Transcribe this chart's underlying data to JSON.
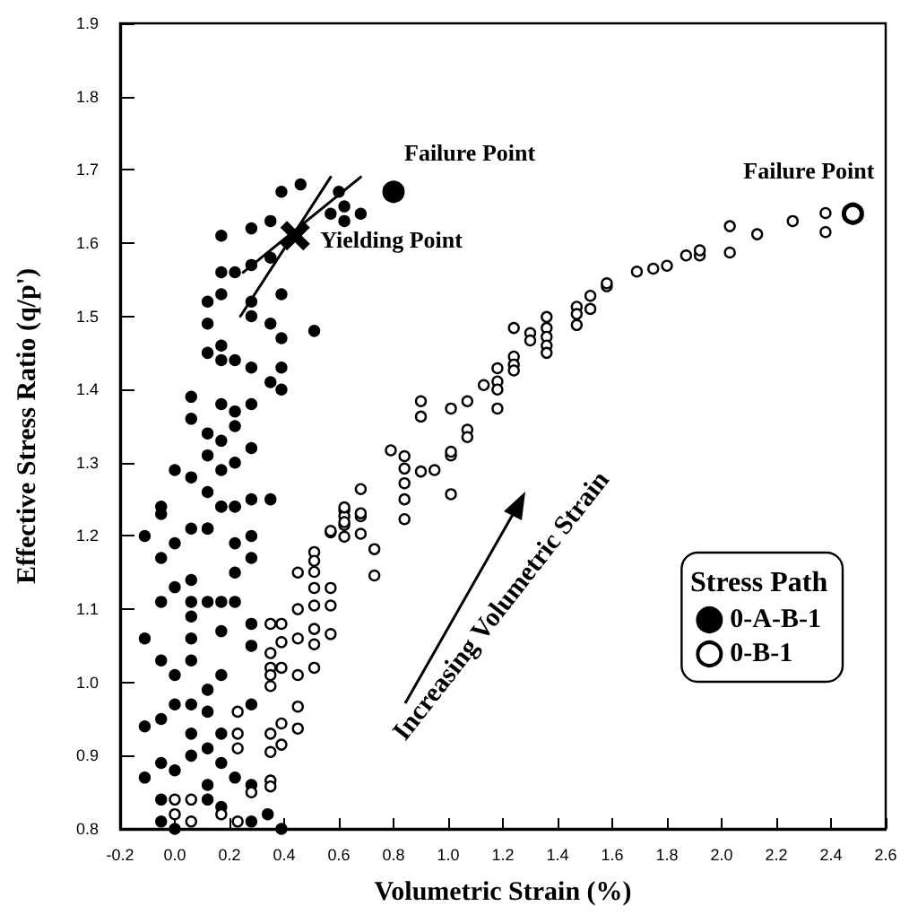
{
  "chart_data": {
    "type": "scatter",
    "xlabel": "Volumetric Strain (%)",
    "ylabel": "Effective Stress Ratio (q/p')",
    "legend_title": "Stress Path",
    "legend": "bottom right",
    "marker": "circle",
    "xlim": [
      -0.2,
      2.6
    ],
    "xticks": [
      -0.2,
      {
        "value": 0,
        "label": "0.0"
      },
      0.2,
      0.4,
      0.6,
      0.8,
      {
        "value": 1,
        "label": "1.0"
      },
      1.2,
      1.4,
      1.6,
      1.8,
      {
        "value": 2,
        "label": "2.0"
      },
      2.2,
      2.4,
      2.6
    ],
    "ylim": [
      0.8,
      1.9
    ],
    "yticks": [
      0.8,
      0.9,
      {
        "value": 1,
        "label": "1.0"
      },
      1.1,
      1.2,
      1.3,
      1.4,
      1.5,
      1.6,
      1.7,
      1.8,
      1.9
    ],
    "annotations": [
      {
        "text": "Failure Point",
        "x": 0.8,
        "y": 1.67
      },
      {
        "text": "Failure Point",
        "x": 2.48,
        "y": 1.64
      },
      {
        "text": "Yielding Point",
        "x": 0.44,
        "y": 1.61
      },
      "Increasing Volumetric Strain"
    ],
    "series": [
      {
        "name": "0-A-B-1",
        "color": "#000000",
        "x": [
          -0.11,
          -0.11,
          -0.11,
          -0.11,
          -0.05,
          -0.05,
          -0.05,
          -0.05,
          -0.05,
          -0.05,
          -0.05,
          -0.05,
          0.0,
          0.0,
          0.0,
          0.0,
          0.0,
          0.0,
          0.06,
          0.06,
          0.06,
          0.06,
          0.06,
          0.06,
          0.06,
          0.06,
          0.06,
          0.12,
          0.12,
          0.12,
          0.12,
          0.12,
          0.12,
          0.12,
          0.17,
          0.17,
          0.17,
          0.17,
          0.17,
          0.17,
          0.17,
          0.22,
          0.22,
          0.22,
          0.22,
          0.22,
          0.28,
          0.28,
          0.28,
          0.28,
          0.28,
          0.28,
          0.28,
          0.34,
          0.39,
          -0.05,
          0.0,
          0.06,
          0.06,
          0.06,
          0.12,
          0.12,
          0.12,
          0.12,
          0.12,
          0.12,
          0.12,
          0.17,
          0.17,
          0.17,
          0.17,
          0.17,
          0.17,
          0.17,
          0.17,
          0.17,
          0.22,
          0.22,
          0.22,
          0.22,
          0.22,
          0.22,
          0.28,
          0.28,
          0.28,
          0.28,
          0.28,
          0.28,
          0.28,
          0.28,
          0.35,
          0.35,
          0.35,
          0.35,
          0.35,
          0.39,
          0.39,
          0.39,
          0.39,
          0.39,
          0.46,
          0.51,
          0.57,
          0.62,
          0.62,
          0.68,
          0.6
        ],
        "values": [
          1.2,
          1.06,
          0.94,
          0.87,
          1.24,
          1.17,
          1.11,
          1.03,
          0.95,
          0.89,
          0.84,
          0.81,
          1.19,
          1.13,
          1.01,
          0.97,
          0.88,
          0.8,
          1.21,
          1.14,
          1.11,
          1.09,
          1.06,
          1.03,
          0.97,
          0.93,
          0.9,
          1.21,
          1.11,
          0.99,
          0.96,
          0.91,
          0.86,
          0.84,
          1.24,
          1.11,
          1.07,
          1.01,
          0.93,
          0.89,
          0.83,
          1.24,
          1.19,
          1.15,
          1.11,
          0.87,
          1.2,
          1.17,
          1.08,
          1.05,
          0.97,
          0.86,
          0.81,
          0.82,
          0.8,
          1.23,
          1.29,
          1.28,
          1.36,
          1.39,
          1.21,
          1.26,
          1.31,
          1.34,
          1.45,
          1.49,
          1.52,
          1.24,
          1.29,
          1.33,
          1.38,
          1.44,
          1.46,
          1.53,
          1.56,
          1.61,
          1.24,
          1.3,
          1.35,
          1.37,
          1.44,
          1.56,
          1.25,
          1.32,
          1.38,
          1.43,
          1.5,
          1.52,
          1.57,
          1.62,
          1.25,
          1.41,
          1.49,
          1.58,
          1.63,
          1.4,
          1.43,
          1.47,
          1.53,
          1.67,
          1.68,
          1.48,
          1.64,
          1.65,
          1.63,
          1.64,
          1.67
        ]
      },
      {
        "name": "0-B-1",
        "color": "#ffffff",
        "x": [
          0.0,
          0.0,
          0.06,
          0.06,
          0.17,
          0.23,
          0.23,
          0.23,
          0.23,
          0.28,
          0.35,
          0.35,
          0.35,
          0.35,
          0.35,
          0.35,
          0.35,
          0.35,
          0.35,
          0.39,
          0.39,
          0.39,
          0.39,
          0.39,
          0.45,
          0.45,
          0.45,
          0.45,
          0.45,
          0.45,
          0.51,
          0.51,
          0.51,
          0.51,
          0.51,
          0.51,
          0.51,
          0.51,
          0.57,
          0.57,
          0.57,
          0.57,
          0.62,
          0.62,
          0.62,
          0.62,
          0.68,
          0.68,
          0.73,
          0.73,
          0.84,
          0.57,
          0.62,
          0.62,
          0.68,
          0.68,
          0.79,
          0.84,
          0.84,
          0.84,
          0.84,
          0.9,
          0.9,
          0.9,
          0.95,
          1.01,
          1.01,
          1.01,
          1.01,
          1.07,
          1.07,
          1.07,
          1.13,
          1.18,
          1.18,
          1.18,
          1.18,
          1.24,
          1.24,
          1.24,
          1.24,
          1.3,
          1.3,
          1.36,
          1.36,
          1.36,
          1.36,
          1.36,
          1.47,
          1.47,
          1.47,
          1.52,
          1.52,
          1.58,
          1.58,
          1.69,
          1.75,
          1.8,
          1.87,
          1.92,
          1.92,
          2.03,
          2.03,
          2.13,
          2.26,
          2.38,
          2.38
        ],
        "values": [
          0.84,
          0.82,
          0.84,
          0.81,
          0.82,
          0.96,
          0.93,
          0.91,
          0.81,
          0.85,
          1.08,
          1.04,
          1.02,
          1.01,
          0.995,
          0.93,
          0.905,
          0.866,
          0.858,
          1.08,
          1.055,
          1.02,
          0.944,
          0.915,
          1.15,
          1.1,
          1.06,
          1.01,
          0.967,
          0.937,
          1.178,
          1.166,
          1.151,
          1.129,
          1.105,
          1.073,
          1.052,
          1.02,
          1.205,
          1.129,
          1.105,
          1.066,
          1.235,
          1.227,
          1.215,
          1.199,
          1.227,
          1.203,
          1.182,
          1.146,
          1.223,
          1.207,
          1.239,
          1.219,
          1.264,
          1.231,
          1.317,
          1.309,
          1.292,
          1.272,
          1.25,
          1.288,
          1.384,
          1.363,
          1.29,
          1.31,
          1.257,
          1.315,
          1.374,
          1.384,
          1.345,
          1.335,
          1.406,
          1.429,
          1.411,
          1.4,
          1.374,
          1.484,
          1.445,
          1.434,
          1.426,
          1.477,
          1.467,
          1.499,
          1.484,
          1.472,
          1.46,
          1.45,
          1.513,
          1.503,
          1.488,
          1.528,
          1.51,
          1.541,
          1.545,
          1.561,
          1.565,
          1.569,
          1.583,
          1.583,
          1.59,
          1.623,
          1.587,
          1.612,
          1.63,
          1.641,
          1.615
        ]
      },
      {
        "type": "line",
        "color": "#000000",
        "marker": "none",
        "x": [
          0.24,
          0.57
        ],
        "values": [
          1.5,
          1.69
        ]
      },
      {
        "type": "line",
        "color": "#000000",
        "marker": "none",
        "x": [
          0.25,
          0.68
        ],
        "values": [
          1.56,
          1.69
        ]
      },
      {
        "color": "#000000",
        "x": [
          0.8
        ],
        "values": [
          1.67
        ]
      },
      {
        "color": "#ffffff",
        "x": [
          2.48
        ],
        "values": [
          1.64
        ]
      },
      {
        "color": "#000000",
        "marker": "cross",
        "x": [
          0.44
        ],
        "values": [
          1.61
        ]
      }
    ]
  }
}
